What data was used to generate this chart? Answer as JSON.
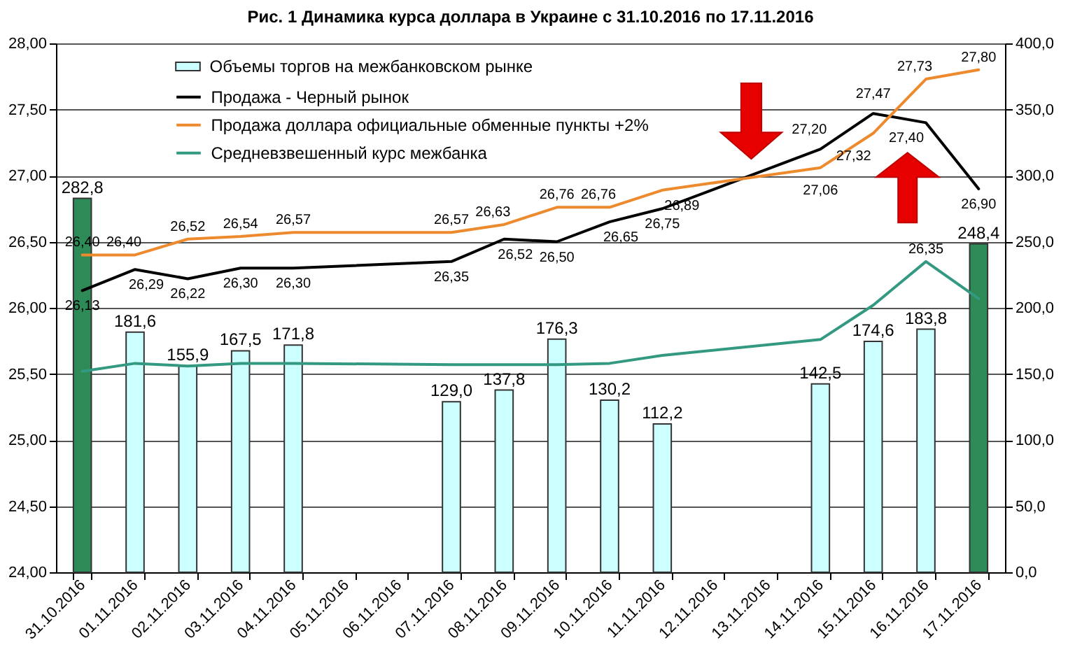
{
  "chart_data": {
    "type": "line",
    "title": "Рис. 1 Динамика курса доллара в Украине с 31.10.2016 по 17.11.2016",
    "categories": [
      "31.10.2016",
      "01.11.2016",
      "02.11.2016",
      "03.11.2016",
      "04.11.2016",
      "05.11.2016",
      "06.11.2016",
      "07.11.2016",
      "08.11.2016",
      "09.11.2016",
      "10.11.2016",
      "11.11.2016",
      "12.11.2016",
      "13.11.2016",
      "14.11.2016",
      "15.11.2016",
      "16.11.2016",
      "17.11.2016"
    ],
    "series": [
      {
        "name": "Объемы торгов на межбанковском рынке",
        "type": "bar",
        "axis": "y2",
        "color": "#ccffff",
        "colors": [
          "#2e8b57",
          "#ccffff",
          "#ccffff",
          "#ccffff",
          "#ccffff",
          "#ccffff",
          "#ccffff",
          "#ccffff",
          "#ccffff",
          "#ccffff",
          "#ccffff",
          "#ccffff",
          "#ccffff",
          "#ccffff",
          "#ccffff",
          "#ccffff",
          "#ccffff",
          "#2e8b57"
        ],
        "values": [
          282.8,
          181.6,
          155.9,
          167.5,
          171.8,
          null,
          null,
          129.0,
          137.8,
          176.3,
          130.2,
          112.2,
          null,
          null,
          142.5,
          174.6,
          183.8,
          248.4
        ],
        "value_labels": [
          "282,8",
          "181,6",
          "155,9",
          "167,5",
          "171,8",
          null,
          null,
          "129,0",
          "137,8",
          "176,3",
          "130,2",
          "112,2",
          null,
          null,
          "142,5",
          "174,6",
          "183,8",
          "248,4"
        ]
      },
      {
        "name": "Продажа - Черный рынок",
        "color": "#000000",
        "values": [
          26.13,
          26.29,
          26.22,
          26.3,
          26.3,
          null,
          null,
          26.35,
          26.52,
          26.5,
          26.65,
          26.75,
          null,
          null,
          27.2,
          27.47,
          27.4,
          26.9
        ],
        "value_labels": [
          "26,13",
          "26,29",
          "26,22",
          "26,30",
          "26,30",
          null,
          null,
          "26,35",
          "26,52",
          "26,50",
          "26,65",
          "26,75",
          null,
          null,
          "27,20",
          "27,47",
          "27,40",
          "26,90"
        ]
      },
      {
        "name": "Продажа доллара официальные обменные пункты +2%",
        "color": "#ee8a2e",
        "values": [
          26.4,
          26.4,
          26.52,
          26.54,
          26.57,
          null,
          null,
          26.57,
          26.63,
          26.76,
          26.76,
          26.89,
          null,
          null,
          27.06,
          27.32,
          27.73,
          27.8
        ],
        "value_labels": [
          "26,40",
          "26,40",
          "26,52",
          "26,54",
          "26,57",
          null,
          null,
          "26,57",
          "26,63",
          "26,76",
          "26,76",
          "26,89",
          null,
          null,
          "27,06",
          "27,32",
          "27,73",
          "27,80"
        ]
      },
      {
        "name": "Средневзвешенный курс межбанка",
        "color": "#339980",
        "values": [
          25.52,
          25.58,
          25.56,
          25.58,
          25.58,
          null,
          null,
          25.57,
          25.57,
          25.57,
          25.58,
          25.64,
          null,
          null,
          25.76,
          26.02,
          26.35,
          26.07
        ],
        "value_labels": [
          null,
          null,
          null,
          null,
          null,
          null,
          null,
          null,
          null,
          null,
          null,
          null,
          null,
          null,
          null,
          null,
          "26,35",
          null
        ]
      }
    ],
    "ylim": [
      24,
      28
    ],
    "yticks": [
      {
        "value": 24,
        "label": "24,00"
      },
      {
        "value": 24.5,
        "label": "24,50"
      },
      {
        "value": 25,
        "label": "25,00"
      },
      {
        "value": 25.5,
        "label": "25,50"
      },
      {
        "value": 26,
        "label": "26,00"
      },
      {
        "value": 26.5,
        "label": "26,50"
      },
      {
        "value": 27,
        "label": "27,00"
      },
      {
        "value": 27.5,
        "label": "27,50"
      },
      {
        "value": 28,
        "label": "28,00"
      }
    ],
    "y2lim": [
      0,
      400
    ],
    "y2ticks": [
      {
        "value": 0,
        "label": "0,0"
      },
      {
        "value": 50,
        "label": "50,0"
      },
      {
        "value": 100,
        "label": "100,0"
      },
      {
        "value": 150,
        "label": "150,0"
      },
      {
        "value": 200,
        "label": "200,0"
      },
      {
        "value": 250,
        "label": "250,0"
      },
      {
        "value": 300,
        "label": "300,0"
      },
      {
        "value": 350,
        "label": "350,0"
      },
      {
        "value": 400,
        "label": "400,0"
      }
    ],
    "grid": "y",
    "legend": "top left"
  }
}
